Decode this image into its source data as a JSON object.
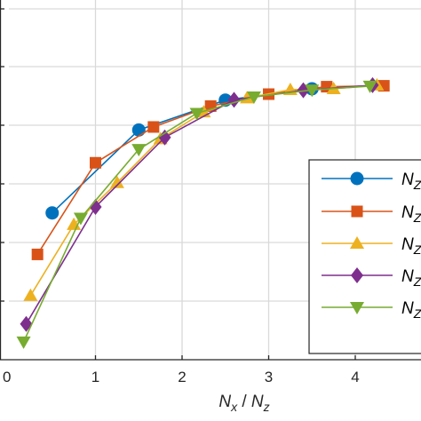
{
  "chart_data": {
    "type": "line",
    "xlabel_parts": [
      "N",
      "x",
      " / ",
      "N",
      "z"
    ],
    "xlim": [
      0,
      4.5
    ],
    "ylim": [
      0,
      1.0
    ],
    "x_ticks": [
      "0",
      "1",
      "2",
      "3",
      "4"
    ],
    "grid": true,
    "legend_position": "right",
    "series": [
      {
        "legend_parts": [
          "N",
          "Z"
        ],
        "color": "#0072BD",
        "marker": "circle",
        "x": [
          0.5,
          1.5,
          2.5,
          3.5
        ],
        "y": [
          0.477,
          0.755,
          0.855,
          0.893
        ]
      },
      {
        "legend_parts": [
          "N",
          "Z"
        ],
        "color": "#D95319",
        "marker": "square",
        "x": [
          0.33,
          1.0,
          1.67,
          2.33,
          3.0,
          3.67,
          4.33
        ],
        "y": [
          0.338,
          0.645,
          0.765,
          0.835,
          0.875,
          0.9,
          0.903
        ]
      },
      {
        "legend_parts": [
          "N",
          "Z"
        ],
        "color": "#EDB120",
        "marker": "triangle-up",
        "x": [
          0.25,
          0.75,
          1.25,
          1.75,
          2.25,
          2.75,
          3.25,
          3.75,
          4.25
        ],
        "y": [
          0.2,
          0.438,
          0.578,
          0.725,
          0.815,
          0.862,
          0.89,
          0.893,
          0.905
        ]
      },
      {
        "legend_parts": [
          "N",
          "Z"
        ],
        "color": "#7E2F8E",
        "marker": "diamond",
        "x": [
          0.2,
          1.0,
          1.8,
          2.6,
          3.4,
          4.2
        ],
        "y": [
          0.105,
          0.497,
          0.73,
          0.856,
          0.888,
          0.905
        ]
      },
      {
        "legend_parts": [
          "N",
          "Z"
        ],
        "color": "#77AC30",
        "marker": "triangle-down",
        "x": [
          0.17,
          0.83,
          1.5,
          2.17,
          2.83,
          3.5,
          4.17
        ],
        "y": [
          0.045,
          0.46,
          0.69,
          0.811,
          0.866,
          0.889,
          0.902
        ]
      }
    ]
  }
}
